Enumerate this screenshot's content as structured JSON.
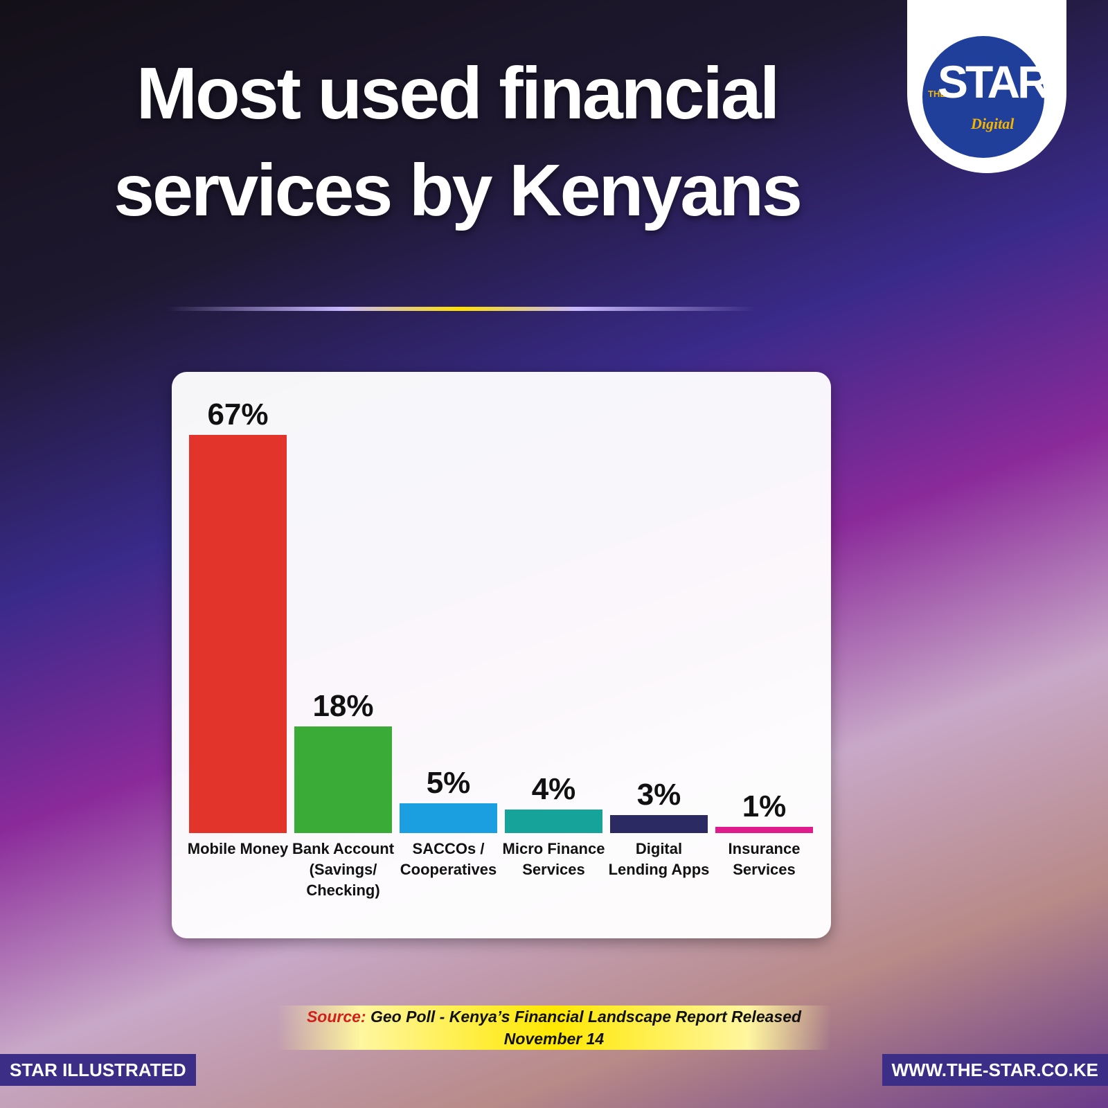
{
  "chart_data": {
    "type": "bar",
    "title": "Most used financial services by Kenyans",
    "categories": [
      "Mobile Money",
      "Bank Account (Savings/ Checking)",
      "SACCOs / Cooperatives",
      "Micro Finance Services",
      "Digital Lending Apps",
      "Insurance Services"
    ],
    "values": [
      67,
      18,
      5,
      4,
      3,
      1
    ],
    "value_labels": [
      "67%",
      "18%",
      "5%",
      "4%",
      "3%",
      "1%"
    ],
    "colors": [
      "#e3342b",
      "#3aab37",
      "#1b9fe0",
      "#16a39a",
      "#2c2a63",
      "#e01b8c"
    ]
  },
  "source": {
    "label": "Source:",
    "text": "Geo Poll - Kenya’s Financial Landscape Report Released November 14"
  },
  "logo": {
    "the": "THE",
    "star": "STAR",
    "digital": "Digital"
  },
  "footer": {
    "left": "STAR ILLUSTRATED",
    "right": "WWW.THE-STAR.CO.KE"
  }
}
